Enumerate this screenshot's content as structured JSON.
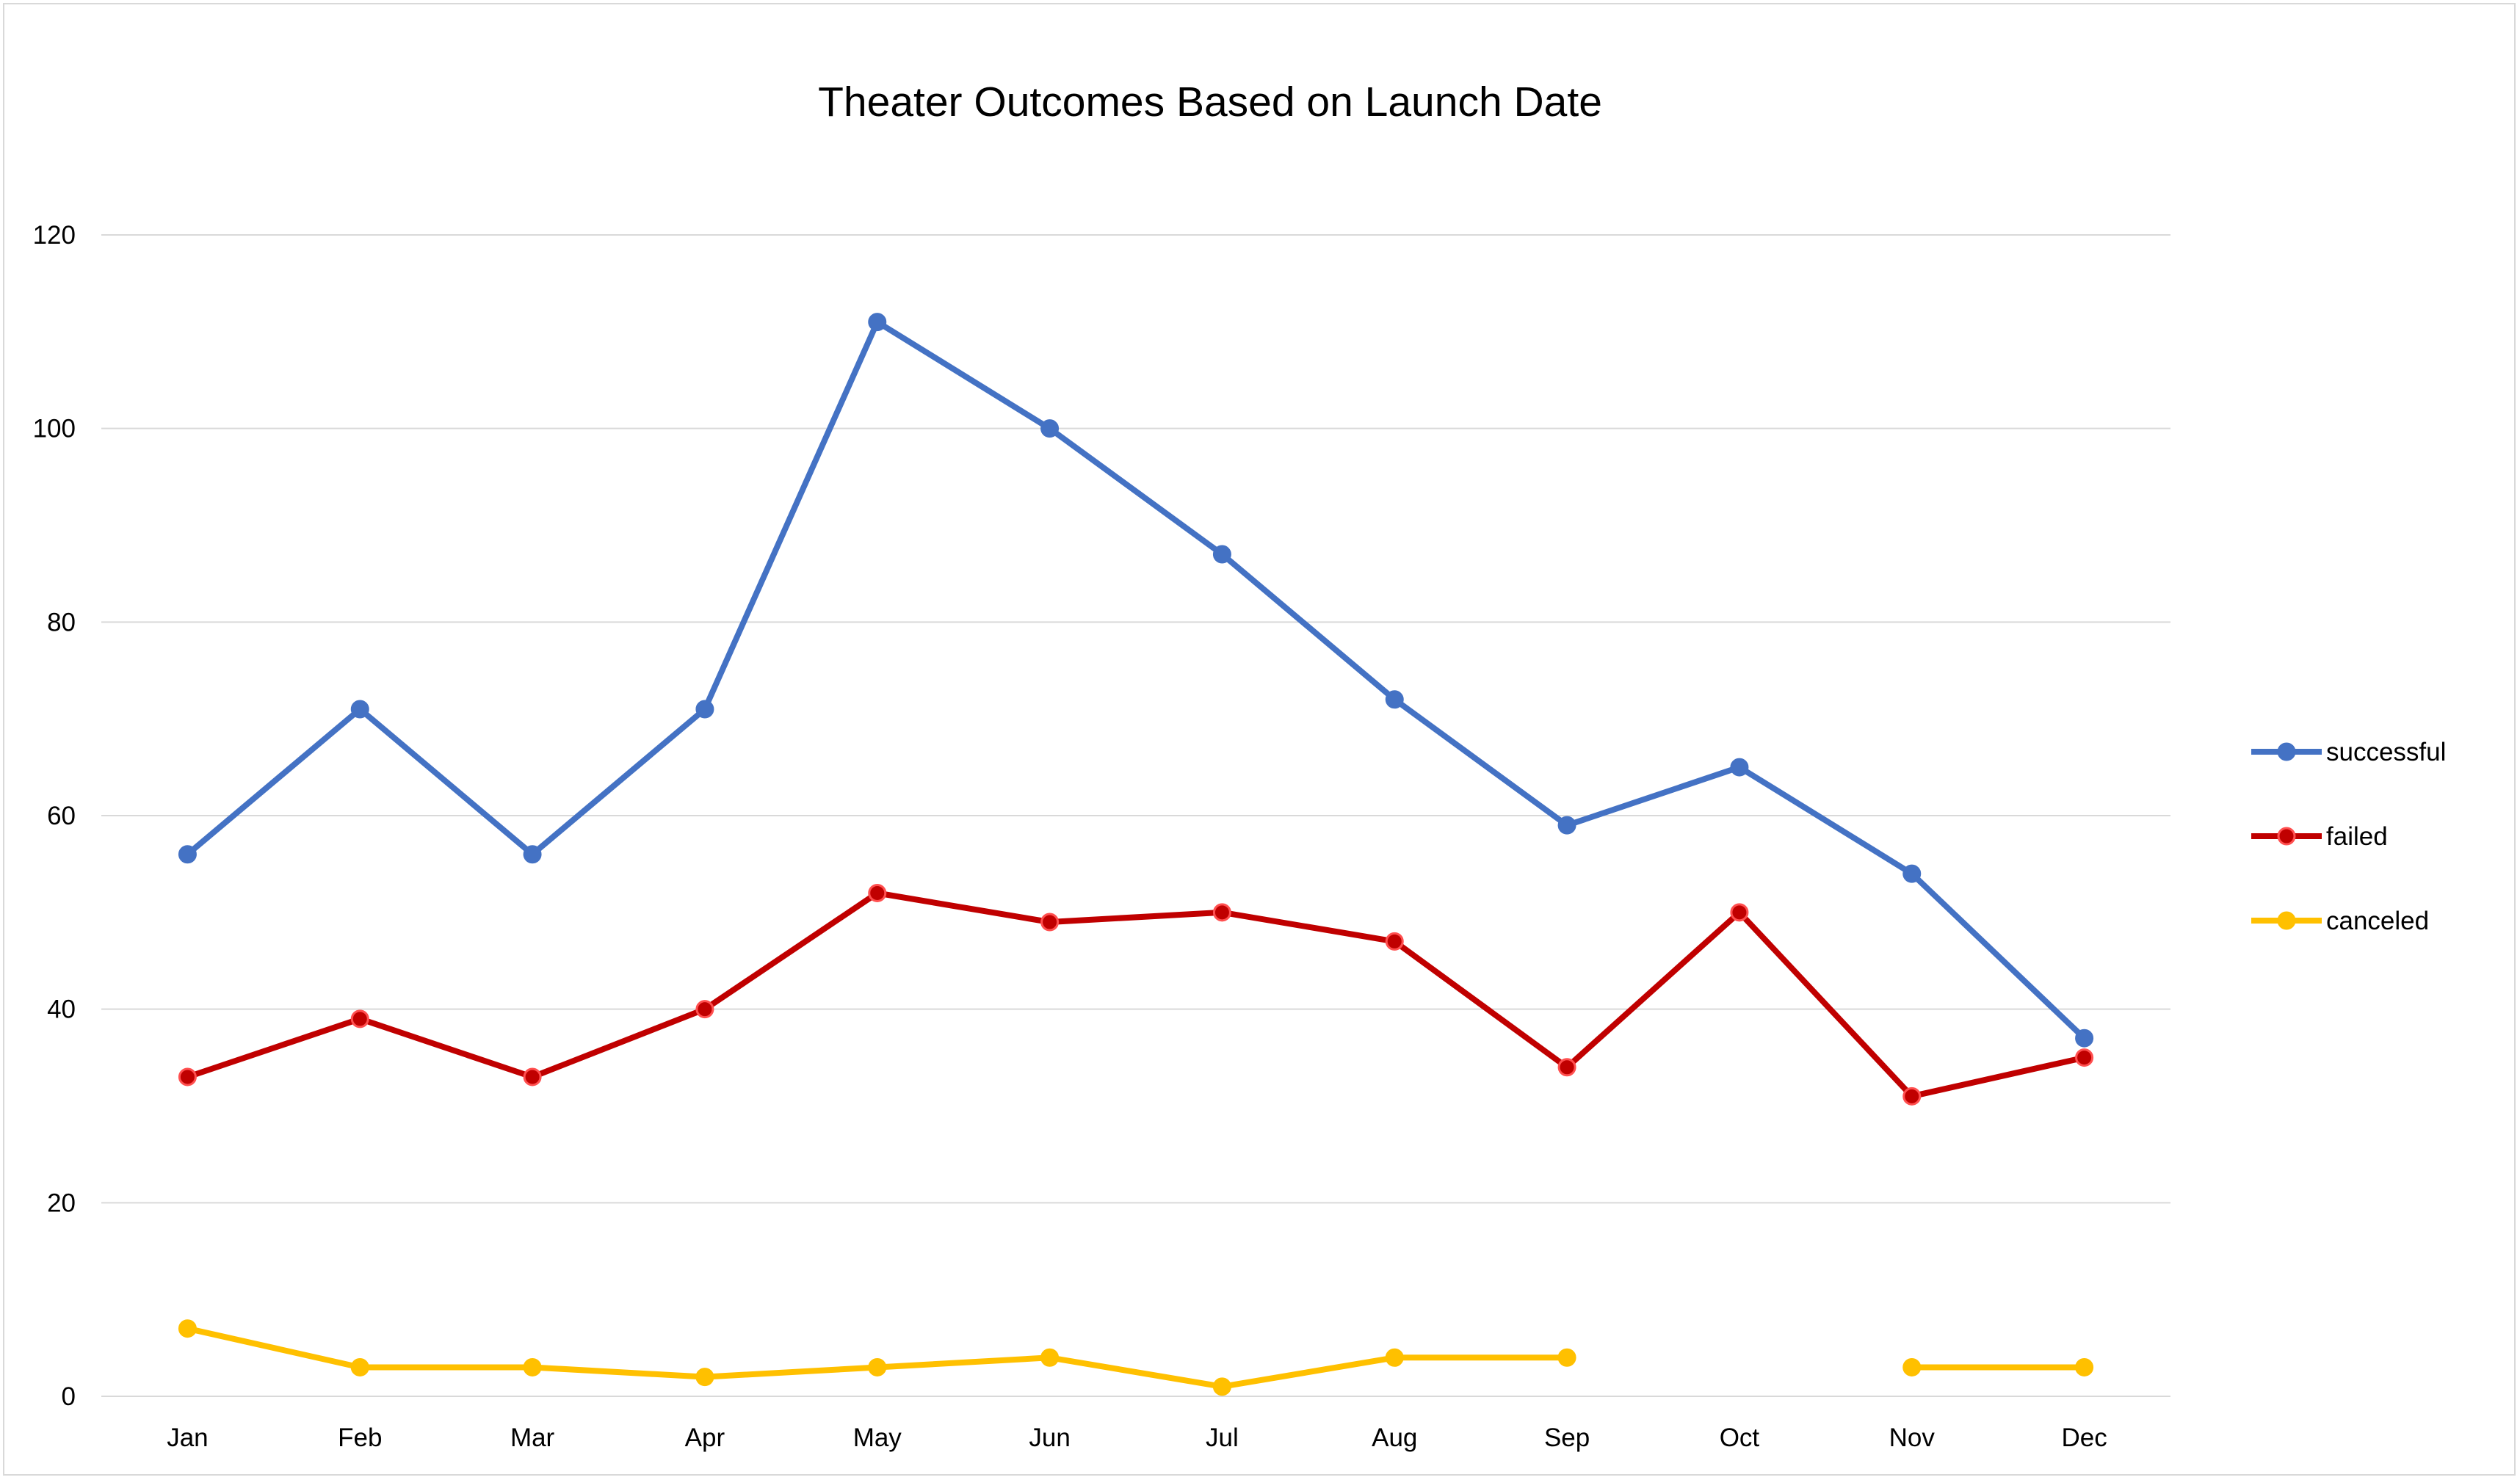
{
  "chart_data": {
    "type": "line",
    "title": "Theater Outcomes Based on Launch Date",
    "xlabel": "",
    "ylabel": "",
    "categories": [
      "Jan",
      "Feb",
      "Mar",
      "Apr",
      "May",
      "Jun",
      "Jul",
      "Aug",
      "Sep",
      "Oct",
      "Nov",
      "Dec"
    ],
    "ylim": [
      0,
      120
    ],
    "yticks": [
      "0",
      "20",
      "40",
      "60",
      "80",
      "100",
      "120"
    ],
    "grid": true,
    "legend_position": "right",
    "series": [
      {
        "name": "successful",
        "color": "#4472C4",
        "marker_edge": "#4472C4",
        "values": [
          56,
          71,
          56,
          71,
          111,
          100,
          87,
          72,
          59,
          65,
          54,
          37
        ]
      },
      {
        "name": "failed",
        "color": "#C00000",
        "marker_edge": "#FF5050",
        "values": [
          33,
          39,
          33,
          40,
          52,
          49,
          50,
          47,
          34,
          50,
          31,
          35
        ]
      },
      {
        "name": "canceled",
        "color": "#FFC000",
        "marker_edge": "#FFC000",
        "values": [
          7,
          3,
          3,
          2,
          3,
          4,
          1,
          4,
          4,
          null,
          3,
          3
        ]
      }
    ]
  }
}
